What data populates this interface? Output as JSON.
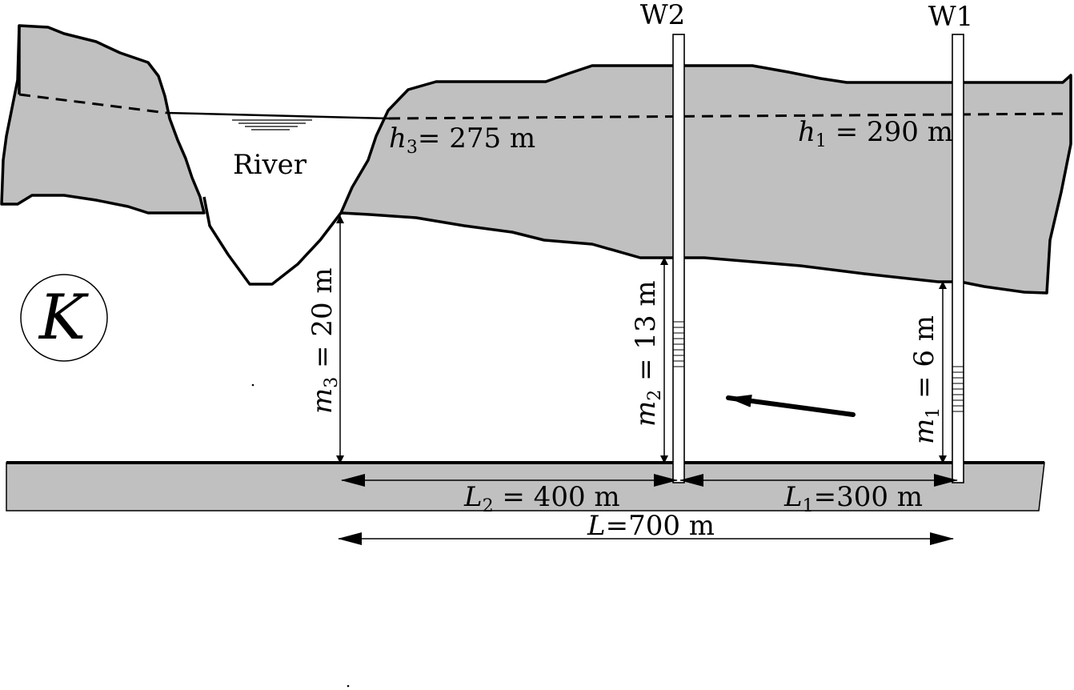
{
  "river": {
    "label": "River"
  },
  "conductivity": {
    "symbol": "K"
  },
  "wells": [
    {
      "id": "W2",
      "label": "W2"
    },
    {
      "id": "W1",
      "label": "W1"
    }
  ],
  "heads": {
    "h3": {
      "symbol": "h",
      "sub": "3",
      "text": "= 275 m"
    },
    "h1": {
      "symbol": "h",
      "sub": "1",
      "text": " = 290 m"
    }
  },
  "thickness": {
    "m3": {
      "symbol": "m",
      "sub": "3",
      "text": " = 20 m"
    },
    "m2": {
      "symbol": "m",
      "sub": "2",
      "text": " = 13 m"
    },
    "m1": {
      "symbol": "m",
      "sub": "1",
      "text": " = 6 m"
    }
  },
  "distances": {
    "L2": {
      "symbol": "L",
      "sub": "2",
      "text": " = 400 m"
    },
    "L1": {
      "symbol": "L",
      "sub": "1",
      "text": "=300 m"
    },
    "L": {
      "symbol": "L",
      "text": "=700 m"
    }
  },
  "colors": {
    "confining_layer": "#c0c0c0",
    "outline": "#000000",
    "background": "#ffffff"
  }
}
